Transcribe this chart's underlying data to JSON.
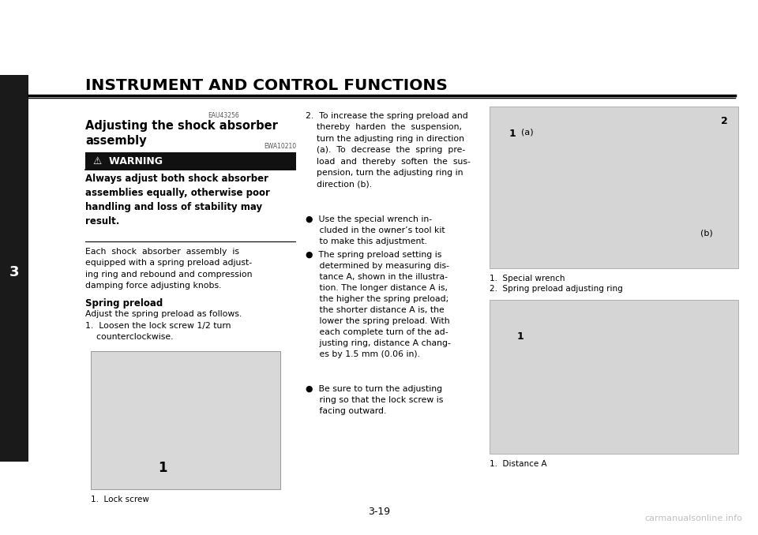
{
  "bg_color": "#ffffff",
  "page_width": 9.6,
  "page_height": 6.78,
  "header_title": "INSTRUMENT AND CONTROL FUNCTIONS",
  "header_title_fontsize": 14,
  "header_title_color": "#000000",
  "left_bar_num": "3",
  "page_num": "3-19",
  "section_code": "EAU43256",
  "section_title": "Adjusting the shock absorber\nassembly",
  "warning_code": "EWA10210",
  "warning_title": "⚠  WARNING",
  "warning_text": "Always adjust both shock absorber\nassemblies equally, otherwise poor\nhandling and loss of stability may\nresult.",
  "body_text1": "Each  shock  absorber  assembly  is\nequipped with a spring preload adjust-\ning ring and rebound and compression\ndamping force adjusting knobs.",
  "spring_preload_title": "Spring preload",
  "spring_preload_body1": "Adjust the spring preload as follows.",
  "spring_preload_body2": "1.  Loosen the lock screw 1/2 turn\n    counterclockwise.",
  "fig1_caption": "1.  Lock screw",
  "col2_intro": "2.  To increase the spring preload and\n    thereby  harden  the  suspension,\n    turn the adjusting ring in direction\n    (a).  To  decrease  the  spring  pre-\n    load  and  thereby  soften  the  sus-\n    pension, turn the adjusting ring in\n    direction (b).",
  "col2_bullet1": "●  Use the special wrench in-\n     cluded in the owner’s tool kit\n     to make this adjustment.",
  "col2_bullet2": "●  The spring preload setting is\n     determined by measuring dis-\n     tance A, shown in the illustra-\n     tion. The longer distance A is,\n     the higher the spring preload;\n     the shorter distance A is, the\n     lower the spring preload. With\n     each complete turn of the ad-\n     justing ring, distance A chang-\n     es by 1.5 mm (0.06 in).",
  "col2_bullet3": "●  Be sure to turn the adjusting\n     ring so that the lock screw is\n     facing outward.",
  "fig2_label1": "1",
  "fig2_label_a": "(a)",
  "fig2_label2": "2",
  "fig2_label_b": "(b)",
  "fig2_caption1": "1.  Special wrench",
  "fig2_caption2": "2.  Spring preload adjusting ring",
  "fig3_label1": "1",
  "fig3_caption": "1.  Distance A",
  "fig1_label": "1",
  "watermark": "carmanualsonline.info"
}
